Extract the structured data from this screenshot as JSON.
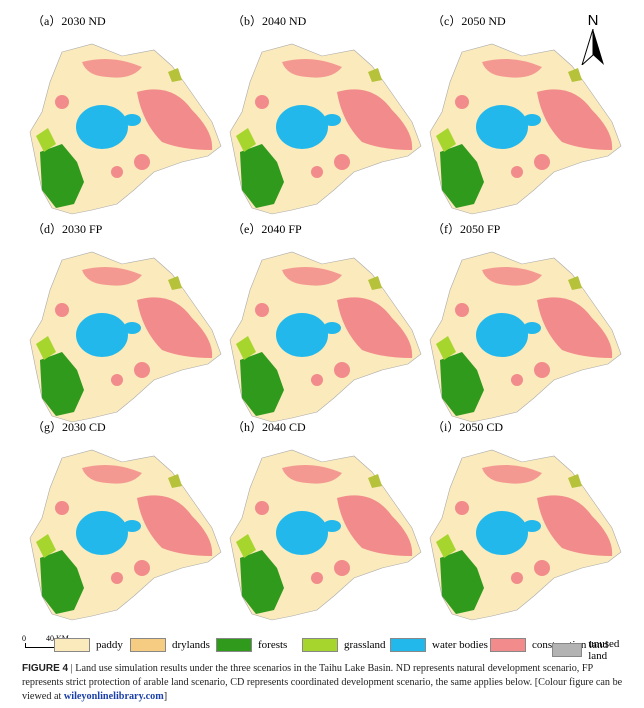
{
  "north_arrow": "N",
  "panels": [
    "（a）2030 ND",
    "（b）2040 ND",
    "（c）2050 ND",
    "（d）2030 FP",
    "（e）2040 FP",
    "（f）2050 FP",
    "（g）2030 CD",
    "（h）2040 CD",
    "（i）2050 CD"
  ],
  "scale_bar": {
    "start": "0",
    "end": "40 KM"
  },
  "legend": [
    {
      "label": "paddy",
      "color": "#faeabc"
    },
    {
      "label": "drylands",
      "color": "#f6cb82"
    },
    {
      "label": "forests",
      "color": "#2f9a1c"
    },
    {
      "label": "grassland",
      "color": "#a6d52e"
    },
    {
      "label": "water bodies",
      "color": "#22b8ec"
    },
    {
      "label": "construction land",
      "color": "#f28b8b"
    },
    {
      "label": "unused land",
      "color": "#b3b3b3"
    }
  ],
  "caption": {
    "label": "FIGURE 4",
    "separator": "|",
    "text": "Land use simulation results under the three scenarios in the Taihu Lake Basin. ND represents natural development scenario, FP represents strict protection of arable land scenario, CD represents coordinated development scenario, the same applies below. [Colour figure can be viewed at",
    "link": "wileyonlinelibrary.com",
    "end": "]"
  }
}
